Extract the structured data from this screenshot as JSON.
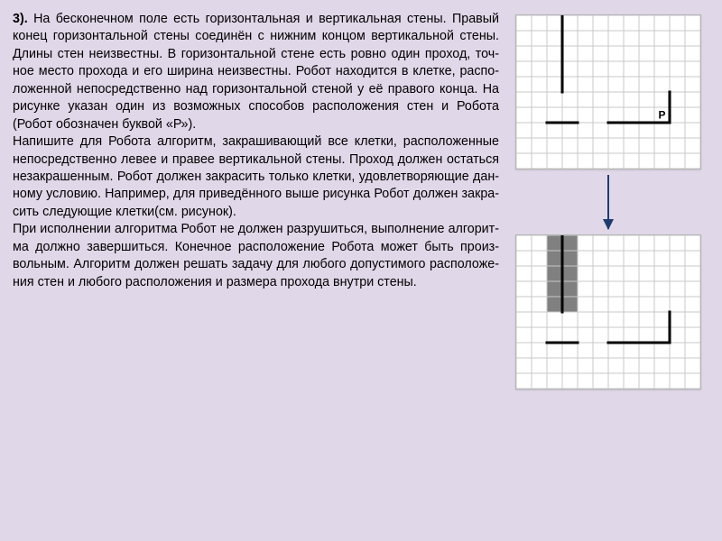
{
  "problem": {
    "number": "3).",
    "para1": "На бес­ко­неч­ном поле есть го­ри­зон­таль­ная и вер­ти­каль­ная стены. Пра­вый конец го­ри­зон­таль­ной стены со­единён с ниж­ним кон­цом вер­ти­каль­ной стены. Длины стен не­из­вест­ны. В го­ри­зон­таль­ной стене есть ровно один про­ход, точ­ное место про­хо­да и его ши­ри­на не­из­вест­ны. Робот на­хо­дит­ся в клет­ке, рас­по­ло­жен­ной не­по­сред­ствен­но над го­ри­зон­таль­ной сте­ной у её пра­во­го конца. На ри­сун­ке ука­зан один из воз­мож­ных спо­со­бов рас­по­ло­же­ния стен и Ро­бо­та (Робот обо­зна­чен бук­вой «Р»).",
    "para2": "На­пи­ши­те для Ро­бо­та ал­го­ритм, за­кра­ши­ва­ю­щий все клет­ки, рас­по­ло­жен­ные не­по­сред­ствен­но левее и пра­вее вер­ти­каль­ной стены. Про­ход дол­жен остать­ся неза­кра­шен­ным. Робот дол­жен за­кра­сить толь­ко клет­ки, удо­вле­тво­ря­ю­щие дан­но­му усло­вию. На­при­мер, для при­ведённого выше ри­сун­ка Робот дол­жен за­кра­сить сле­ду­ю­щие клет­ки(см. ри­су­нок).",
    "para3": "При ис­пол­не­нии ал­го­рит­ма Робот не дол­жен раз­ру­шить­ся, вы­пол­не­ние ал­го­рит­ма долж­но за­вер­шить­ся. Ко­неч­ное рас­по­ло­же­ние Ро­бо­та может быть про­из­воль­ным. Ал­го­ритм дол­жен ре­шать за­да­чу для лю­бо­го до­пу­сти­мо­го рас­по­ло­же­ния стен и лю­бо­го рас­по­ло­же­ния   и раз­ме­ра про­хо­да внут­ри стены."
  },
  "grid": {
    "cols": 12,
    "rows": 10,
    "cell": 17,
    "line_color": "#c9c9c9",
    "bg": "#ffffff",
    "wall_color": "#000000",
    "wall_width": 3,
    "fill_color": "#808080",
    "robot_label": "Р",
    "robot_fontsize": 12
  },
  "fig1": {
    "vertical_wall": {
      "col": 3,
      "row_from": 0,
      "row_to": 5
    },
    "horizontal_wall": {
      "row": 7,
      "col_from": 2,
      "col_to": 10,
      "gap_from": 4,
      "gap_to": 6
    },
    "corner_vertical": {
      "col": 10,
      "row_from": 5,
      "row_to": 7
    },
    "robot": {
      "col": 9,
      "row": 6
    },
    "filled": []
  },
  "fig2": {
    "vertical_wall": {
      "col": 3,
      "row_from": 0,
      "row_to": 5
    },
    "horizontal_wall": {
      "row": 7,
      "col_from": 2,
      "col_to": 10,
      "gap_from": 4,
      "gap_to": 6
    },
    "corner_vertical": {
      "col": 10,
      "row_from": 5,
      "row_to": 7
    },
    "robot": null,
    "filled": [
      [
        2,
        0
      ],
      [
        3,
        0
      ],
      [
        2,
        1
      ],
      [
        3,
        1
      ],
      [
        2,
        2
      ],
      [
        3,
        2
      ],
      [
        2,
        3
      ],
      [
        3,
        3
      ],
      [
        2,
        4
      ],
      [
        3,
        4
      ]
    ]
  },
  "arrow_color": "#1f3c6e"
}
